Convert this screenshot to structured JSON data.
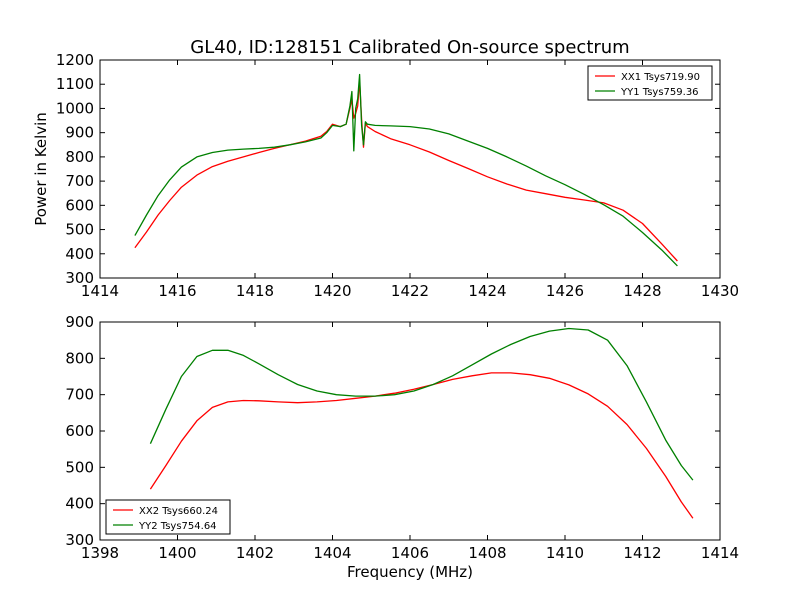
{
  "figure": {
    "title": "GL40, ID:128151 Calibrated On-source spectrum"
  },
  "chart_data": [
    {
      "type": "line",
      "title": "GL40, ID:128151 Calibrated On-source spectrum",
      "xlabel": "",
      "ylabel": "Power in Kelvin",
      "xlim": [
        1414,
        1430
      ],
      "ylim": [
        300,
        1200
      ],
      "xticks": [
        1414,
        1416,
        1418,
        1420,
        1422,
        1424,
        1426,
        1428,
        1430
      ],
      "yticks": [
        300,
        400,
        500,
        600,
        700,
        800,
        900,
        1000,
        1100,
        1200
      ],
      "legend_position": "top-right",
      "grid": false,
      "series": [
        {
          "name": "XX1 Tsys719.90",
          "color": "#ff0000",
          "x": [
            1414.9,
            1415.2,
            1415.5,
            1415.8,
            1416.1,
            1416.5,
            1416.9,
            1417.3,
            1417.7,
            1418.1,
            1418.5,
            1418.9,
            1419.3,
            1419.7,
            1419.85,
            1420.0,
            1420.2,
            1420.35,
            1420.45,
            1420.5,
            1420.55,
            1420.6,
            1420.65,
            1420.7,
            1420.75,
            1420.8,
            1420.85,
            1420.9,
            1421.1,
            1421.5,
            1422.0,
            1422.5,
            1423.0,
            1423.5,
            1424.0,
            1424.5,
            1425.0,
            1425.5,
            1426.0,
            1426.5,
            1427.0,
            1427.5,
            1428.0,
            1428.5,
            1428.9
          ],
          "y": [
            425,
            490,
            560,
            620,
            675,
            725,
            760,
            782,
            800,
            818,
            835,
            850,
            865,
            885,
            905,
            935,
            925,
            935,
            1000,
            1040,
            960,
            980,
            1010,
            1115,
            955,
            840,
            940,
            925,
            905,
            875,
            850,
            820,
            785,
            752,
            718,
            688,
            663,
            648,
            633,
            622,
            610,
            580,
            525,
            440,
            370
          ]
        },
        {
          "name": "YY1 Tsys759.36",
          "color": "#008000",
          "x": [
            1414.9,
            1415.2,
            1415.5,
            1415.8,
            1416.1,
            1416.5,
            1416.9,
            1417.3,
            1417.7,
            1418.1,
            1418.5,
            1418.9,
            1419.3,
            1419.7,
            1419.85,
            1420.0,
            1420.2,
            1420.35,
            1420.45,
            1420.5,
            1420.55,
            1420.6,
            1420.65,
            1420.7,
            1420.75,
            1420.8,
            1420.85,
            1420.9,
            1421.1,
            1421.5,
            1422.0,
            1422.5,
            1423.0,
            1423.5,
            1424.0,
            1424.5,
            1425.0,
            1425.5,
            1426.0,
            1426.5,
            1427.0,
            1427.5,
            1428.0,
            1428.5,
            1428.9
          ],
          "y": [
            475,
            560,
            640,
            705,
            758,
            800,
            818,
            828,
            832,
            835,
            840,
            850,
            862,
            878,
            900,
            930,
            925,
            935,
            1010,
            1070,
            825,
            1000,
            1040,
            1140,
            930,
            850,
            945,
            935,
            930,
            928,
            925,
            915,
            895,
            865,
            835,
            800,
            762,
            722,
            685,
            645,
            602,
            555,
            488,
            415,
            350
          ]
        }
      ]
    },
    {
      "type": "line",
      "title": "",
      "xlabel": "Frequency (MHz)",
      "ylabel": "",
      "xlim": [
        1398,
        1414
      ],
      "ylim": [
        300,
        900
      ],
      "xticks": [
        1398,
        1400,
        1402,
        1404,
        1406,
        1408,
        1410,
        1412,
        1414
      ],
      "yticks": [
        300,
        400,
        500,
        600,
        700,
        800,
        900
      ],
      "legend_position": "bottom-left",
      "grid": false,
      "series": [
        {
          "name": "XX2 Tsys660.24",
          "color": "#ff0000",
          "x": [
            1399.3,
            1399.7,
            1400.1,
            1400.5,
            1400.9,
            1401.3,
            1401.7,
            1402.1,
            1402.6,
            1403.1,
            1403.6,
            1404.1,
            1404.6,
            1405.1,
            1405.6,
            1406.1,
            1406.6,
            1407.1,
            1407.6,
            1408.1,
            1408.6,
            1409.1,
            1409.6,
            1410.1,
            1410.6,
            1411.1,
            1411.6,
            1412.1,
            1412.6,
            1413.0,
            1413.3
          ],
          "y": [
            440,
            505,
            572,
            628,
            665,
            680,
            684,
            683,
            680,
            678,
            680,
            684,
            690,
            696,
            704,
            715,
            728,
            742,
            752,
            760,
            760,
            755,
            745,
            727,
            702,
            668,
            618,
            552,
            475,
            405,
            360
          ]
        },
        {
          "name": "YY2 Tsys754.64",
          "color": "#008000",
          "x": [
            1399.3,
            1399.7,
            1400.1,
            1400.5,
            1400.9,
            1401.3,
            1401.7,
            1402.1,
            1402.6,
            1403.1,
            1403.6,
            1404.1,
            1404.6,
            1405.1,
            1405.6,
            1406.1,
            1406.6,
            1407.1,
            1407.6,
            1408.1,
            1408.6,
            1409.1,
            1409.6,
            1410.1,
            1410.6,
            1411.1,
            1411.6,
            1412.1,
            1412.6,
            1413.0,
            1413.3
          ],
          "y": [
            565,
            660,
            750,
            805,
            822,
            822,
            808,
            785,
            755,
            728,
            710,
            700,
            696,
            696,
            700,
            710,
            728,
            752,
            782,
            812,
            838,
            860,
            875,
            882,
            878,
            850,
            780,
            680,
            575,
            505,
            465
          ]
        }
      ]
    }
  ]
}
